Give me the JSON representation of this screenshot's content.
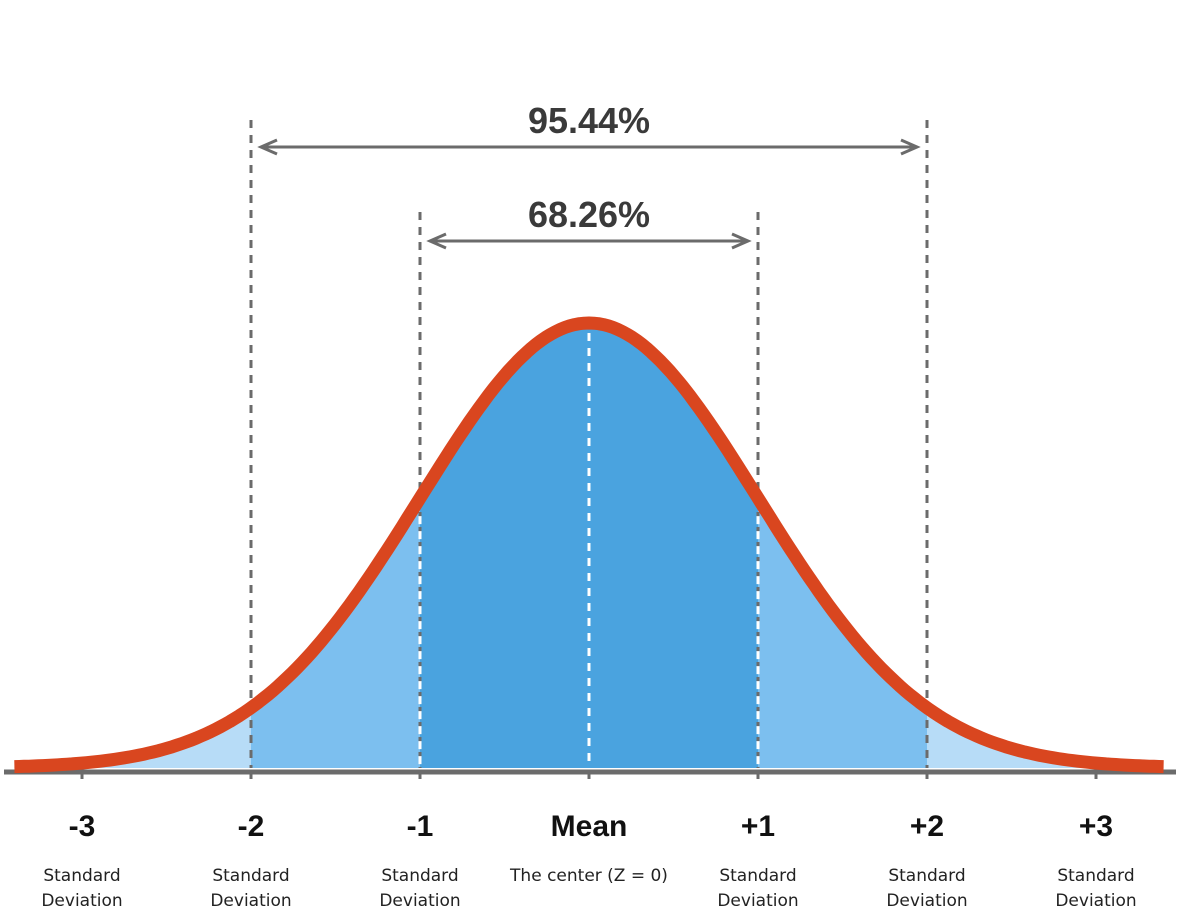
{
  "chart_data": {
    "type": "area",
    "title": "",
    "xlabel": "",
    "ylabel": "",
    "distribution": "normal",
    "mean": 0,
    "sd": 1,
    "xlim": [
      -3.4,
      3.4
    ],
    "ticks": [
      {
        "z": -3,
        "label": "-3",
        "sub": [
          "Standard",
          "Deviation"
        ]
      },
      {
        "z": -2,
        "label": "-2",
        "sub": [
          "Standard",
          "Deviation"
        ]
      },
      {
        "z": -1,
        "label": "-1",
        "sub": [
          "Standard",
          "Deviation"
        ]
      },
      {
        "z": 0,
        "label": "Mean",
        "sub": [
          "The center (Z = 0)"
        ]
      },
      {
        "z": 1,
        "label": "+1",
        "sub": [
          "Standard",
          "Deviation"
        ]
      },
      {
        "z": 2,
        "label": "+2",
        "sub": [
          "Standard",
          "Deviation"
        ]
      },
      {
        "z": 3,
        "label": "+3",
        "sub": [
          "Standard",
          "Deviation"
        ]
      }
    ],
    "ranges": [
      {
        "from": -1,
        "to": 1,
        "label": "68.26%"
      },
      {
        "from": -2,
        "to": 2,
        "label": "95.44%"
      }
    ],
    "colors": {
      "curve": "#d9461f",
      "band1": "#4aa3df",
      "band2": "#7cbfef",
      "band3": "#b7dcf7",
      "axis": "#6b6b6b",
      "guide": "#6b6b6b",
      "mean_guide": "#ffffff",
      "arrow": "#6b6b6b"
    }
  }
}
